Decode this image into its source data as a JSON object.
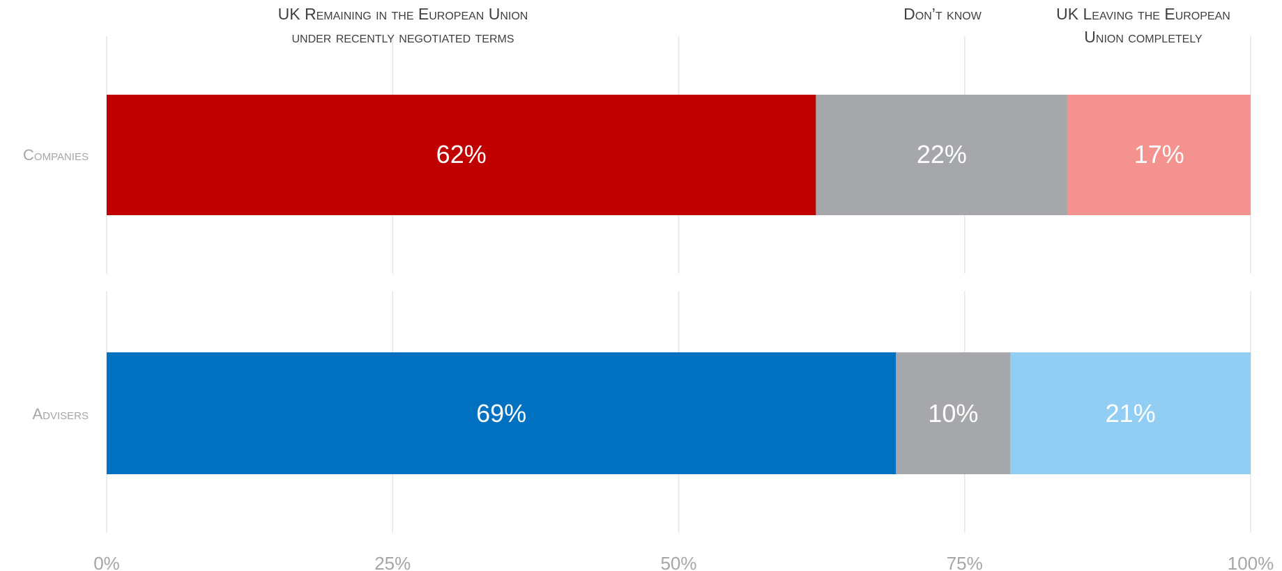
{
  "chart_data": {
    "type": "bar",
    "orientation": "horizontal",
    "stacked": true,
    "categories": [
      "Companies",
      "Advisers"
    ],
    "series": [
      {
        "name": "UK Remaining in the European Union under recently negotiated terms",
        "name_lines": [
          "UK Remaining in the European Union",
          "under recently negotiated terms"
        ],
        "values": [
          62,
          69
        ],
        "labels": [
          "62%",
          "69%"
        ]
      },
      {
        "name": "Don’t know",
        "name_lines": [
          "Don’t know"
        ],
        "values": [
          22,
          10
        ],
        "labels": [
          "22%",
          "10%"
        ]
      },
      {
        "name": "UK Leaving the European Union completely",
        "name_lines": [
          "UK Leaving the European",
          "Union completely"
        ],
        "values": [
          17,
          21
        ],
        "labels": [
          "17%",
          "21%"
        ]
      }
    ],
    "bar_colors": [
      [
        "#C00000",
        "#A6A7AA",
        "#F4928F"
      ],
      [
        "#0070C0",
        "#A6A7AA",
        "#92CDF3"
      ]
    ],
    "xlim": [
      0,
      100
    ],
    "x_ticks": [
      0,
      25,
      50,
      75,
      100
    ],
    "x_tick_labels": [
      "0%",
      "25%",
      "50%",
      "75%",
      "100%"
    ],
    "grid": true,
    "legend": "top",
    "grid_color": "#E6E6E6",
    "axis_text_color": "#A6A6A6",
    "legend_text_color": "#404040",
    "value_label_color": "#FFFFFF"
  }
}
